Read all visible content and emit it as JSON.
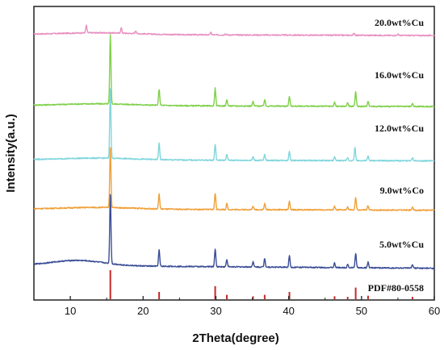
{
  "chart_data": {
    "type": "line",
    "xlabel": "2Theta(degree)",
    "ylabel": "Intensity(a.u.)",
    "xlim": [
      5,
      60
    ],
    "x_ticks": [
      10,
      20,
      30,
      40,
      50,
      60
    ],
    "grid": false,
    "series": [
      {
        "name": "20.0wt%Cu",
        "color": "#e88fc0",
        "baseline": 0.905,
        "peaks": [
          [
            12.2,
            0.025
          ],
          [
            17.0,
            0.018
          ],
          [
            19.0,
            0.01
          ],
          [
            29.3,
            0.008
          ],
          [
            31.3,
            0.004
          ],
          [
            49.0,
            0.007
          ],
          [
            55.0,
            0.004
          ]
        ]
      },
      {
        "name": "16.0wt%Cu",
        "color": "#7fd04a",
        "baseline": 0.663,
        "peaks": [
          [
            15.5,
            0.235
          ],
          [
            22.2,
            0.055
          ],
          [
            29.9,
            0.06
          ],
          [
            31.5,
            0.022
          ],
          [
            35.1,
            0.015
          ],
          [
            36.7,
            0.022
          ],
          [
            40.1,
            0.032
          ],
          [
            46.3,
            0.014
          ],
          [
            48.1,
            0.012
          ],
          [
            49.2,
            0.05
          ],
          [
            50.9,
            0.018
          ],
          [
            57.0,
            0.01
          ]
        ]
      },
      {
        "name": "12.0wt%Cu",
        "color": "#7fd6dc",
        "baseline": 0.478,
        "peaks": [
          [
            15.5,
            0.235
          ],
          [
            22.2,
            0.055
          ],
          [
            29.9,
            0.055
          ],
          [
            31.5,
            0.02
          ],
          [
            35.1,
            0.012
          ],
          [
            36.7,
            0.02
          ],
          [
            40.1,
            0.032
          ],
          [
            46.3,
            0.012
          ],
          [
            48.1,
            0.01
          ],
          [
            49.1,
            0.045
          ],
          [
            50.9,
            0.015
          ],
          [
            57.0,
            0.01
          ]
        ]
      },
      {
        "name": "9.0wt%Co",
        "color": "#f0a03a",
        "baseline": 0.31,
        "peaks": [
          [
            15.5,
            0.205
          ],
          [
            22.2,
            0.05
          ],
          [
            29.9,
            0.055
          ],
          [
            31.5,
            0.02
          ],
          [
            35.1,
            0.012
          ],
          [
            36.7,
            0.02
          ],
          [
            40.1,
            0.028
          ],
          [
            46.3,
            0.012
          ],
          [
            48.1,
            0.01
          ],
          [
            49.2,
            0.042
          ],
          [
            50.9,
            0.015
          ],
          [
            57.0,
            0.01
          ]
        ]
      },
      {
        "name": "5.0wt%Cu",
        "color": "#3a4d96",
        "baseline": 0.118,
        "peaks": [
          [
            15.5,
            0.235
          ],
          [
            22.2,
            0.055
          ],
          [
            29.9,
            0.06
          ],
          [
            31.5,
            0.025
          ],
          [
            35.1,
            0.018
          ],
          [
            36.7,
            0.03
          ],
          [
            40.1,
            0.04
          ],
          [
            46.3,
            0.015
          ],
          [
            48.1,
            0.012
          ],
          [
            49.2,
            0.05
          ],
          [
            50.9,
            0.02
          ],
          [
            57.0,
            0.012
          ]
        ]
      }
    ],
    "reference": {
      "name": "PDF#80-0558",
      "color": "#c62828",
      "lines": [
        [
          15.5,
          1.0
        ],
        [
          22.2,
          0.25
        ],
        [
          29.9,
          0.45
        ],
        [
          31.5,
          0.15
        ],
        [
          35.1,
          0.1
        ],
        [
          36.7,
          0.15
        ],
        [
          40.1,
          0.25
        ],
        [
          46.3,
          0.1
        ],
        [
          48.1,
          0.08
        ],
        [
          49.2,
          0.4
        ],
        [
          50.9,
          0.12
        ],
        [
          57.0,
          0.08
        ]
      ]
    }
  }
}
